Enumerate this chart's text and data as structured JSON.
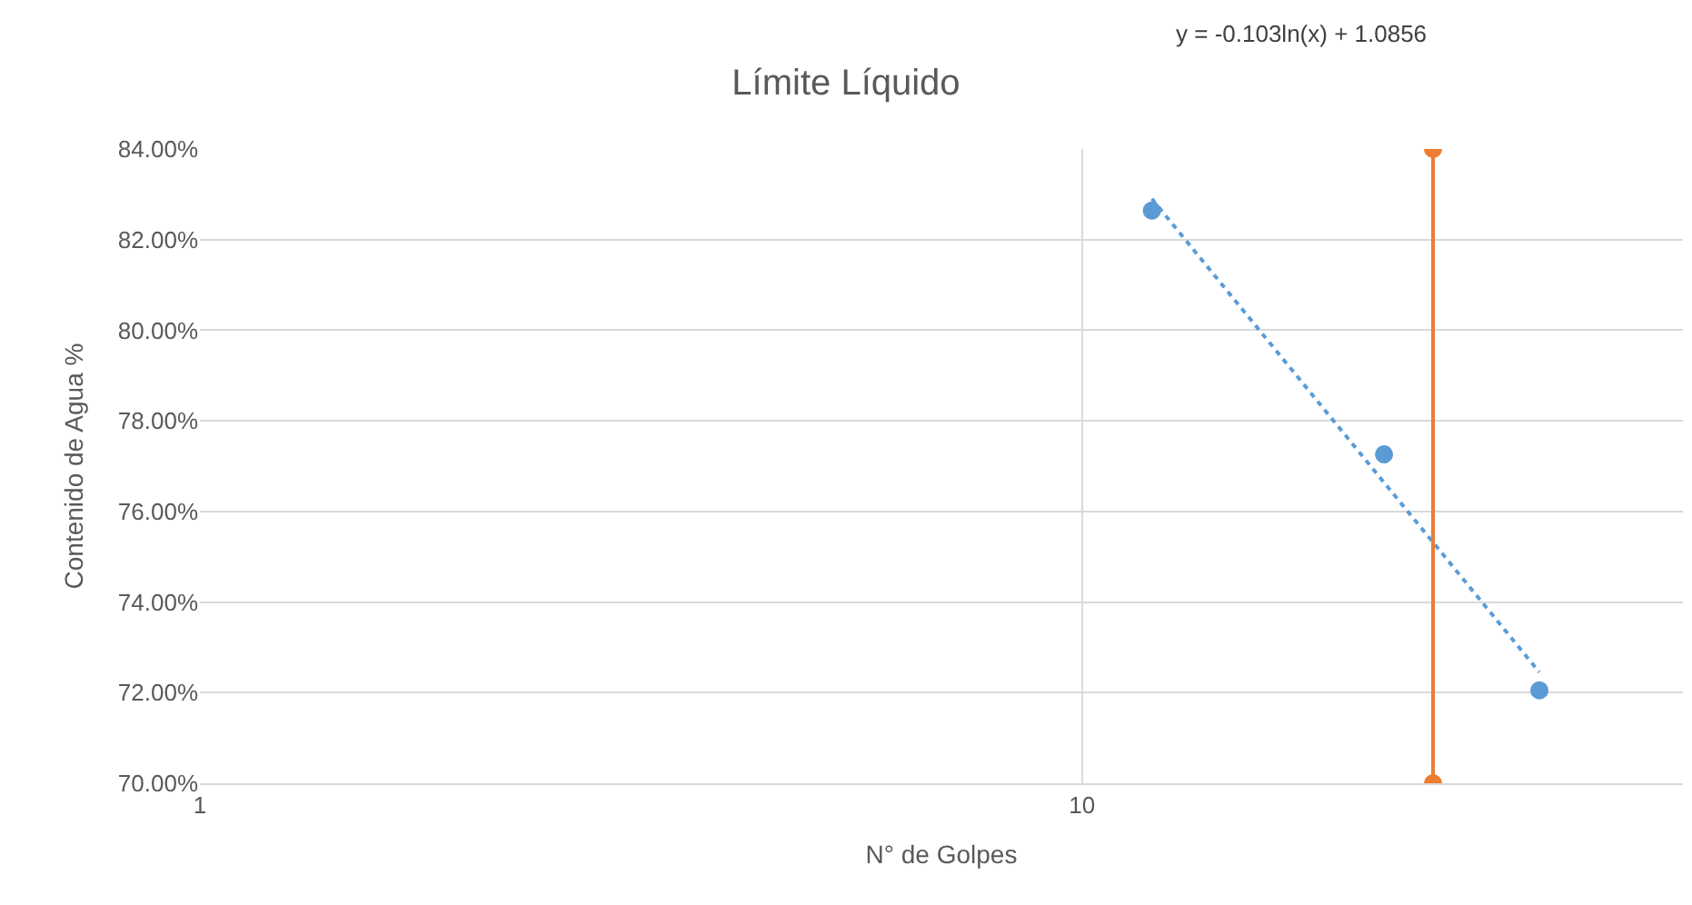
{
  "chart_data": {
    "type": "scatter",
    "title": "Límite Líquido",
    "xlabel": "N° de Golpes",
    "ylabel": "Contenido de Agua %",
    "annotations": [
      "y = -0.103ln(x) + 1.0856"
    ],
    "series": [
      {
        "color": "#5b9bd5",
        "x": [
          12,
          22,
          33
        ],
        "values": [
          82.64,
          77.26,
          72.05
        ],
        "marker": "circle"
      },
      {
        "type": "line",
        "color": "#5b9bd5",
        "x": [
          12,
          33
        ],
        "values": [
          82.9,
          72.45
        ],
        "line_style": "dotted",
        "marker": "none"
      },
      {
        "type": "line",
        "color": "#ed7d31",
        "x": [
          25,
          25
        ],
        "values": [
          70,
          84
        ],
        "line_style": "solid",
        "marker": "circle"
      }
    ],
    "log": "x",
    "xlim": [
      1,
      48
    ],
    "xticks": [
      1,
      10
    ],
    "ylim": [
      70,
      84
    ],
    "yticks": [
      {
        "value": 70,
        "label": "70.00%"
      },
      {
        "value": 72,
        "label": "72.00%"
      },
      {
        "value": 74,
        "label": "74.00%"
      },
      {
        "value": 76,
        "label": "76.00%"
      },
      {
        "value": 78,
        "label": "78.00%"
      },
      {
        "value": 80,
        "label": "80.00%"
      },
      {
        "value": 82,
        "label": "82.00%"
      },
      {
        "value": 84,
        "label": "84.00%"
      }
    ],
    "grid": true
  }
}
